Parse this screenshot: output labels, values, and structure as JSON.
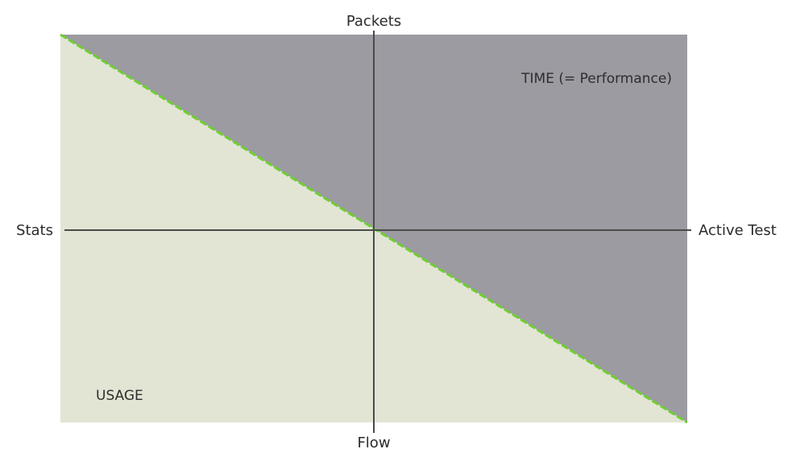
{
  "axes": {
    "top": "Packets",
    "bottom": "Flow",
    "left": "Stats",
    "right": "Active Test"
  },
  "regions": {
    "upper_right": "TIME (= Performance)",
    "lower_left": "USAGE"
  },
  "colors": {
    "upper_region": "#9b9ba1",
    "lower_region": "#e2e5d4",
    "boundary": "#6fcf2f",
    "axis_line": "#4a4a4a",
    "text": "#2b2b2b"
  }
}
